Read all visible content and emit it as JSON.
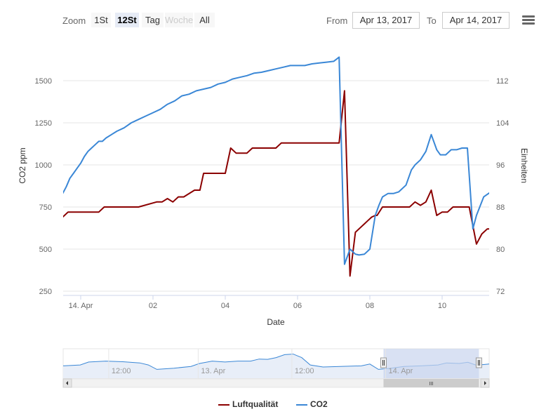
{
  "toolbar": {
    "zoom_label": "Zoom",
    "buttons": [
      "1St",
      "12St",
      "Tag",
      "Woche",
      "All"
    ],
    "active": "12St",
    "disabled": "Woche",
    "from_label": "From",
    "from_value": "Apr 13, 2017",
    "to_label": "To",
    "to_value": "Apr 14, 2017"
  },
  "colors": {
    "luftqualitaet": "#8b0000",
    "co2": "#3a87d6",
    "grid": "#e6e6e6",
    "navigator_mask": "#c9d4ee"
  },
  "chart_data": {
    "type": "line",
    "xlabel": "Date",
    "ylabel_left": "CO2 ppm",
    "ylabel_right": "Einheiten",
    "x_ticks": [
      {
        "t": 0,
        "label": "14. Apr"
      },
      {
        "t": 2,
        "label": "02"
      },
      {
        "t": 4,
        "label": "04"
      },
      {
        "t": 6,
        "label": "06"
      },
      {
        "t": 8,
        "label": "08"
      },
      {
        "t": 10,
        "label": "10"
      }
    ],
    "x_range": [
      -0.5,
      11.5
    ],
    "yleft_ticks": [
      250,
      500,
      750,
      1000,
      1250,
      1500
    ],
    "yleft_range": [
      250,
      1500
    ],
    "yright_ticks": [
      72,
      80,
      88,
      96,
      104,
      112
    ],
    "yright_range": [
      72,
      112
    ],
    "series": [
      {
        "name": "Luftqualität",
        "axis": "left",
        "x": [
          -0.5,
          -0.35,
          0.45,
          0.5,
          0.65,
          1.4,
          1.55,
          1.6,
          2.1,
          2.25,
          2.4,
          2.55,
          2.7,
          2.85,
          3.15,
          3.3,
          3.4,
          4.0,
          4.15,
          4.3,
          4.6,
          4.75,
          4.9,
          5.4,
          5.55,
          7.15,
          7.3,
          7.45,
          7.6,
          7.75,
          7.85,
          7.95,
          8.05,
          8.15,
          8.2,
          8.35,
          8.5,
          8.65,
          9.1,
          9.25,
          9.4,
          9.55,
          9.7,
          9.85,
          10.0,
          10.15,
          10.3,
          10.5,
          10.75,
          10.95,
          11.1,
          11.25,
          11.5
        ],
        "values": [
          690,
          720,
          720,
          720,
          750,
          750,
          750,
          750,
          780,
          780,
          800,
          780,
          810,
          810,
          850,
          850,
          950,
          950,
          1100,
          1070,
          1070,
          1100,
          1100,
          1100,
          1130,
          1130,
          1440,
          340,
          600,
          630,
          650,
          670,
          690,
          700,
          700,
          750,
          750,
          750,
          750,
          780,
          760,
          780,
          850,
          700,
          720,
          720,
          750,
          750,
          750,
          530,
          590,
          620,
          620
        ]
      },
      {
        "name": "CO2",
        "axis": "left",
        "x": [
          -0.5,
          -0.4,
          -0.3,
          -0.2,
          -0.1,
          0.0,
          0.1,
          0.2,
          0.3,
          0.4,
          0.5,
          0.6,
          0.7,
          0.85,
          1.0,
          1.2,
          1.4,
          1.6,
          1.8,
          2.0,
          2.2,
          2.4,
          2.6,
          2.8,
          3.0,
          3.2,
          3.4,
          3.6,
          3.8,
          4.0,
          4.2,
          4.4,
          4.6,
          4.8,
          5.0,
          5.2,
          5.4,
          5.6,
          5.8,
          6.0,
          6.2,
          6.4,
          6.6,
          6.8,
          7.0,
          7.15,
          7.3,
          7.45,
          7.6,
          7.7,
          7.85,
          8.0,
          8.15,
          8.25,
          8.35,
          8.5,
          8.65,
          8.8,
          9.0,
          9.15,
          9.25,
          9.4,
          9.55,
          9.7,
          9.85,
          9.95,
          10.1,
          10.25,
          10.4,
          10.55,
          10.7,
          10.85,
          10.95,
          11.15,
          11.35,
          11.5
        ],
        "values": [
          830,
          870,
          920,
          950,
          980,
          1010,
          1050,
          1080,
          1100,
          1120,
          1140,
          1140,
          1160,
          1180,
          1200,
          1220,
          1250,
          1270,
          1290,
          1310,
          1330,
          1360,
          1380,
          1410,
          1420,
          1440,
          1450,
          1460,
          1480,
          1490,
          1510,
          1520,
          1530,
          1545,
          1550,
          1560,
          1570,
          1580,
          1590,
          1590,
          1590,
          1600,
          1605,
          1610,
          1615,
          1640,
          410,
          500,
          470,
          465,
          470,
          500,
          700,
          760,
          810,
          830,
          830,
          840,
          880,
          970,
          1000,
          1030,
          1080,
          1180,
          1090,
          1060,
          1060,
          1090,
          1090,
          1100,
          1100,
          620,
          700,
          810,
          840,
          840
        ]
      }
    ]
  },
  "navigator": {
    "labels": [
      {
        "pos": 0.13,
        "text": "12:00"
      },
      {
        "pos": 0.34,
        "text": "13. Apr"
      },
      {
        "pos": 0.56,
        "text": "12:00"
      },
      {
        "pos": 0.78,
        "text": "14. Apr"
      }
    ],
    "profile": [
      [
        0,
        0.58
      ],
      [
        0.04,
        0.55
      ],
      [
        0.06,
        0.45
      ],
      [
        0.1,
        0.42
      ],
      [
        0.14,
        0.44
      ],
      [
        0.18,
        0.48
      ],
      [
        0.2,
        0.55
      ],
      [
        0.22,
        0.7
      ],
      [
        0.26,
        0.66
      ],
      [
        0.3,
        0.6
      ],
      [
        0.32,
        0.5
      ],
      [
        0.35,
        0.42
      ],
      [
        0.38,
        0.45
      ],
      [
        0.41,
        0.42
      ],
      [
        0.44,
        0.42
      ],
      [
        0.46,
        0.35
      ],
      [
        0.48,
        0.36
      ],
      [
        0.5,
        0.3
      ],
      [
        0.52,
        0.2
      ],
      [
        0.54,
        0.18
      ],
      [
        0.56,
        0.3
      ],
      [
        0.58,
        0.55
      ],
      [
        0.61,
        0.62
      ],
      [
        0.65,
        0.6
      ],
      [
        0.7,
        0.58
      ],
      [
        0.72,
        0.52
      ],
      [
        0.74,
        0.7
      ],
      [
        0.77,
        0.66
      ],
      [
        0.8,
        0.6
      ],
      [
        0.84,
        0.58
      ],
      [
        0.88,
        0.55
      ],
      [
        0.9,
        0.48
      ],
      [
        0.93,
        0.5
      ],
      [
        0.95,
        0.46
      ],
      [
        0.97,
        0.56
      ],
      [
        1,
        0.52
      ]
    ],
    "window": [
      0.752,
      0.976
    ],
    "scroll_thumb_label": "III"
  },
  "legend": [
    {
      "name": "Luftqualität",
      "color": "#8b0000"
    },
    {
      "name": "CO2",
      "color": "#3a87d6"
    }
  ]
}
